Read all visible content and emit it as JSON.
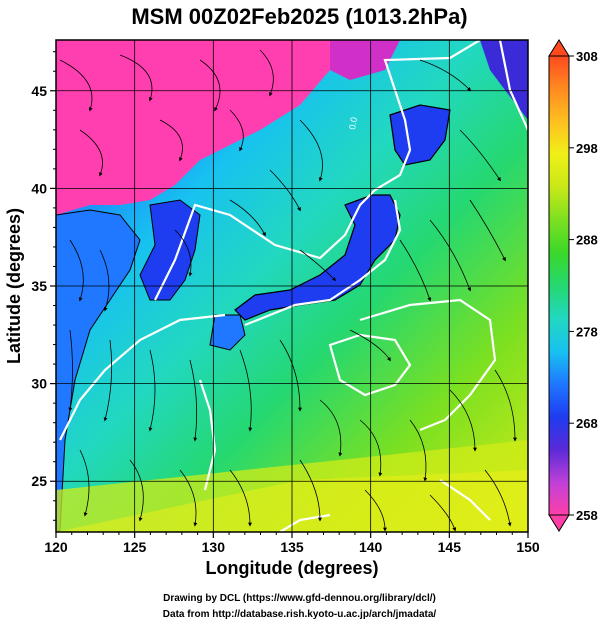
{
  "figure": {
    "title": "MSM 00Z02Feb2025 (1013.2hPa)",
    "xlabel": "Longitude (degrees)",
    "ylabel": "Latitude  (degrees)",
    "credit_line1": "Drawing by DCL (https://www.gfd-dennou.org/library/dcl/)",
    "credit_line2": "Data from http://database.rish.kyoto-u.ac.jp/arch/jmadata/"
  },
  "axes": {
    "lon_range": [
      120,
      150
    ],
    "lat_range": [
      22.4,
      47.6
    ],
    "lon_ticks": [
      120,
      125,
      130,
      135,
      140,
      145,
      150
    ],
    "lat_ticks": [
      25,
      30,
      35,
      40,
      45
    ],
    "grid": true
  },
  "colorbar": {
    "range": [
      258,
      308
    ],
    "labels": [
      308,
      298,
      288,
      278,
      268,
      258
    ],
    "palette": [
      "#ff3fa8",
      "#c040d8",
      "#5a2ad8",
      "#1e3cf0",
      "#1f78ff",
      "#17c2f0",
      "#22d8c0",
      "#25d870",
      "#3ad82a",
      "#7ce020",
      "#c8e818",
      "#f0f018",
      "#ffc020",
      "#ff8a20",
      "#ff4a20"
    ]
  },
  "contours": {
    "zero_label": "0.0",
    "color": "#ffffff"
  },
  "colors": {
    "land_cold": "#ff3fb0",
    "coast": "#000000",
    "streamline": "#000000"
  }
}
